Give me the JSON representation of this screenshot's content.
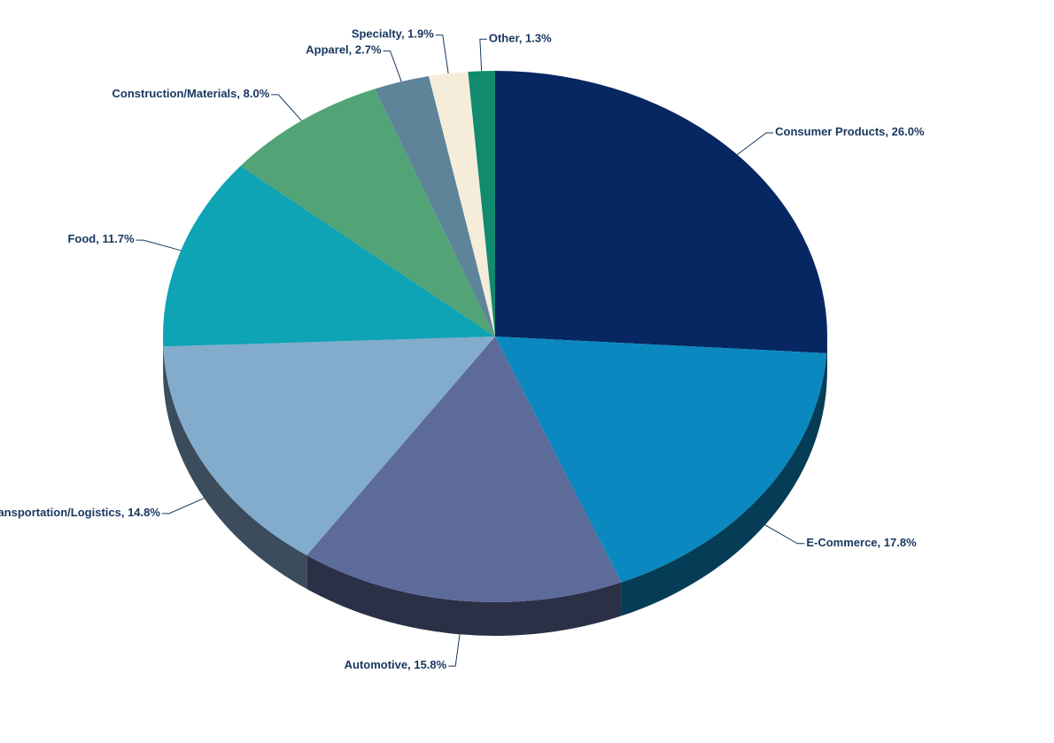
{
  "chart_data": {
    "type": "pie",
    "categories": [
      "Consumer Products",
      "E-Commerce",
      "Automotive",
      "Transportation/Logistics",
      "Food",
      "Construction/Materials",
      "Apparel",
      "Specialty",
      "Other"
    ],
    "values": [
      26.0,
      17.8,
      15.8,
      14.8,
      11.7,
      8.0,
      2.7,
      1.9,
      1.3
    ],
    "value_labels": [
      "26.0%",
      "17.8%",
      "15.8%",
      "14.8%",
      "11.7%",
      "8.0%",
      "2.7%",
      "1.9%",
      "1.3%"
    ],
    "label_separator": ", ",
    "colors": [
      "#062762",
      "#0a88bf",
      "#5d6b9b",
      "#82abcc",
      "#0ea3b5",
      "#52a375",
      "#5e8499",
      "#f5ecda",
      "#118a6e"
    ]
  }
}
